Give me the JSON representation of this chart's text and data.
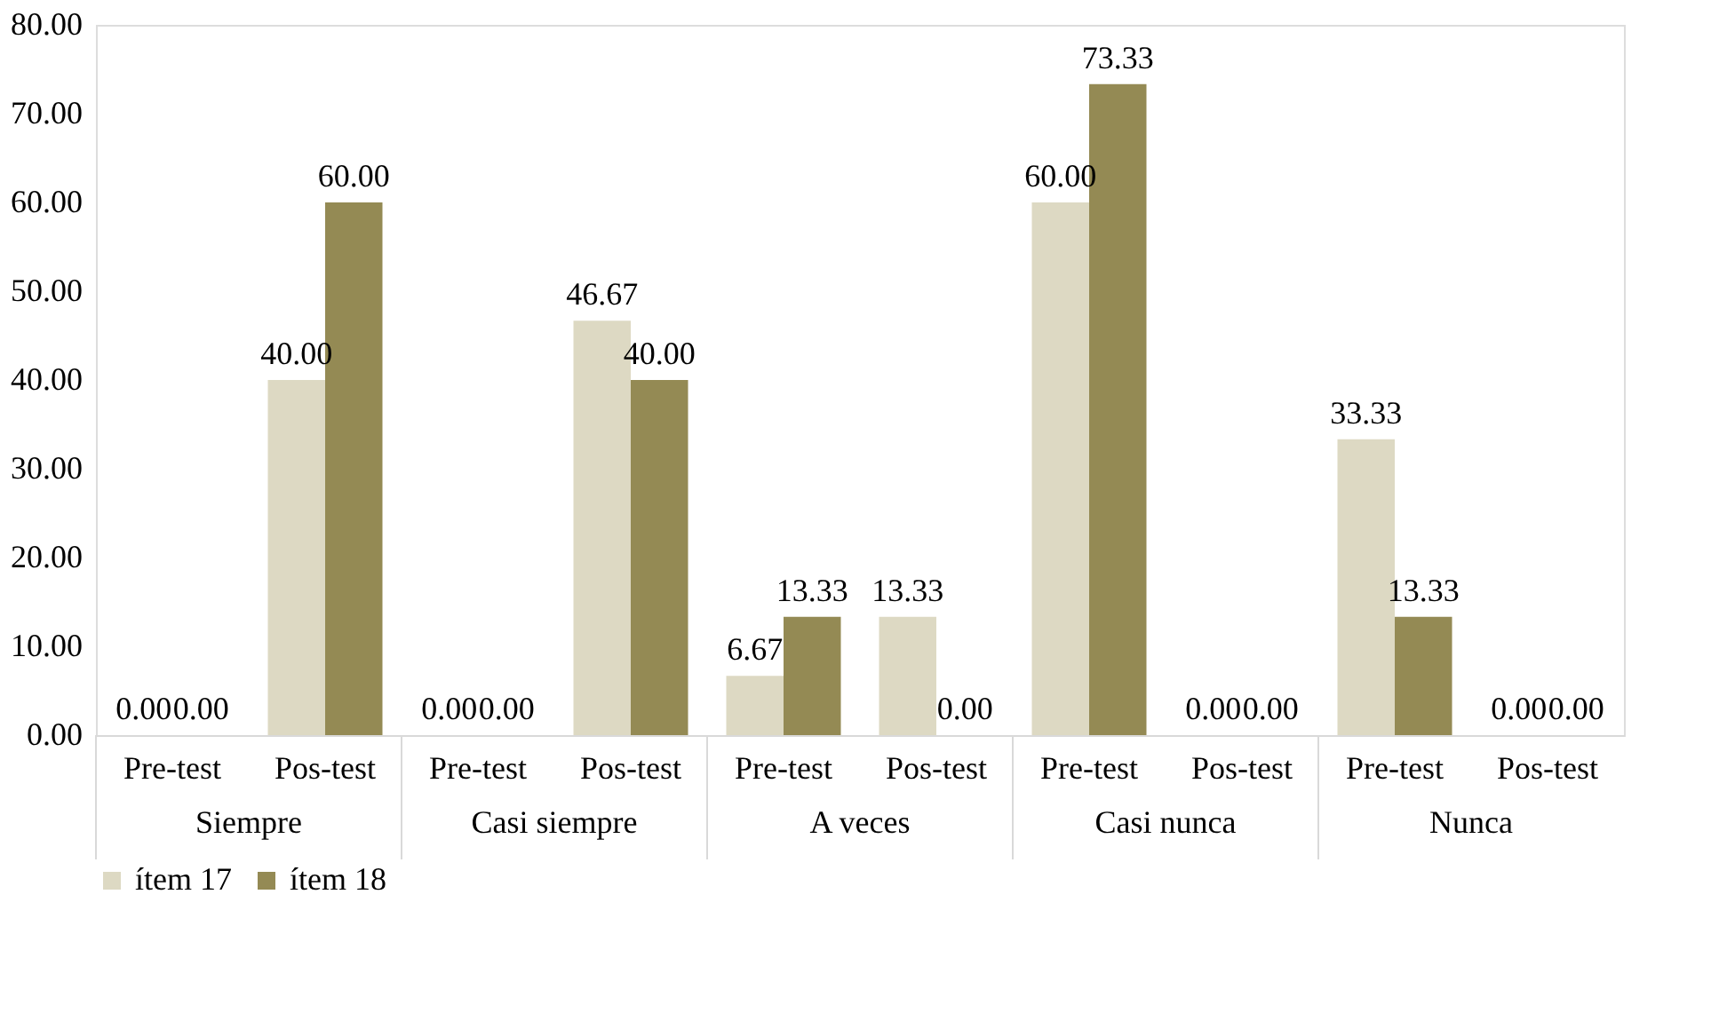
{
  "chart_data": {
    "type": "bar",
    "categories": [
      "Pre-test",
      "Pos-test",
      "Pre-test",
      "Pos-test",
      "Pre-test",
      "Pos-test",
      "Pre-test",
      "Pos-test",
      "Pre-test",
      "Pos-test"
    ],
    "annotations": [
      "Siempre",
      "Casi siempre",
      "A veces",
      "Casi nunca",
      "Nunca"
    ],
    "series": [
      {
        "name": "ítem 17",
        "color": "#ddd9c3",
        "values": [
          0,
          40,
          0,
          46.67,
          6.67,
          13.33,
          60,
          0,
          33.33,
          0
        ],
        "value_labels": [
          "0.00",
          "40.00",
          "0.00",
          "46.67",
          "6.67",
          "13.33",
          "60.00",
          "0.00",
          "33.33",
          "0.00"
        ]
      },
      {
        "name": "ítem 18",
        "color": "#948a54",
        "values": [
          0,
          60,
          0,
          40,
          13.33,
          0,
          73.33,
          0,
          13.33,
          0
        ],
        "value_labels": [
          "0.00",
          "60.00",
          "0.00",
          "40.00",
          "13.33",
          "0.00",
          "73.33",
          "0.00",
          "13.33",
          "0.00"
        ]
      }
    ],
    "ylim": [
      0,
      80
    ],
    "yticks": [
      {
        "value": 0,
        "label": "0.00"
      },
      {
        "value": 10,
        "label": "10.00"
      },
      {
        "value": 20,
        "label": "20.00"
      },
      {
        "value": 30,
        "label": "30.00"
      },
      {
        "value": 40,
        "label": "40.00"
      },
      {
        "value": 50,
        "label": "50.00"
      },
      {
        "value": 60,
        "label": "60.00"
      },
      {
        "value": 70,
        "label": "70.00"
      },
      {
        "value": 80,
        "label": "80.00"
      }
    ],
    "grid": false,
    "legend": "bottom"
  }
}
